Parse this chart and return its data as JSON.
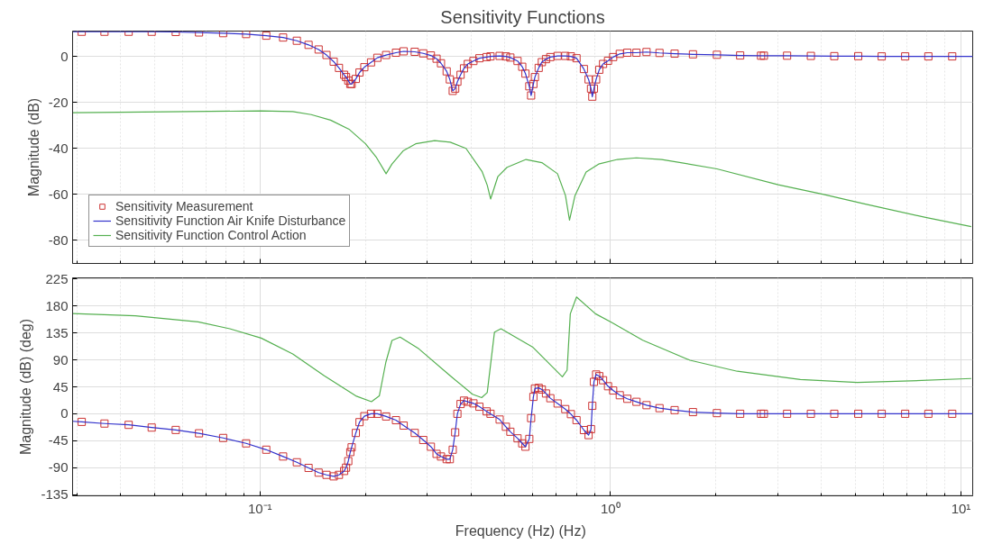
{
  "chart_data": [
    {
      "type": "line",
      "title": "Sensitivity Functions",
      "ylabel": "Magnitude (dB)",
      "log": "x",
      "grid": true,
      "legend": "bottom left",
      "tick_labels": "y",
      "xlim": [
        0.0292,
        10.8
      ],
      "xticks": [
        0.1,
        1,
        10
      ],
      "ylim": [
        -90,
        11
      ],
      "yticks": [
        -80,
        -60,
        -40,
        -20,
        0
      ],
      "series": [
        {
          "name": "Sensitivity Measurement",
          "type": "scatter",
          "marker": "square",
          "color": "#cc3333",
          "x": [
            0.031,
            0.036,
            0.0422,
            0.0491,
            0.0575,
            0.067,
            0.0785,
            0.0913,
            0.1042,
            0.1164,
            0.1274,
            0.1376,
            0.147,
            0.1548,
            0.1623,
            0.168,
            0.1738,
            0.176,
            0.1786,
            0.181,
            0.1826,
            0.1877,
            0.1923,
            0.1985,
            0.2074,
            0.2162,
            0.229,
            0.2443,
            0.257,
            0.2764,
            0.2923,
            0.3073,
            0.319,
            0.3284,
            0.3409,
            0.348,
            0.3547,
            0.3605,
            0.3658,
            0.3735,
            0.382,
            0.3917,
            0.4064,
            0.4227,
            0.4432,
            0.4547,
            0.4828,
            0.503,
            0.518,
            0.543,
            0.56,
            0.572,
            0.5866,
            0.5937,
            0.6026,
            0.6087,
            0.624,
            0.637,
            0.6546,
            0.6736,
            0.7066,
            0.743,
            0.771,
            0.8,
            0.8397,
            0.866,
            0.88,
            0.8874,
            0.897,
            0.91,
            0.929,
            0.9524,
            0.984,
            1.0177,
            1.063,
            1.117,
            1.186,
            1.267,
            1.38,
            1.524,
            1.719,
            2.012,
            2.344,
            2.689,
            2.739,
            3.19,
            3.73,
            4.35,
            5.09,
            5.94,
            6.93,
            8.07,
            9.44
          ],
          "values": [
            10.7,
            10.7,
            10.7,
            10.7,
            10.6,
            10.4,
            10.1,
            9.7,
            9.0,
            8.2,
            6.8,
            5.0,
            3.0,
            0.6,
            -2.3,
            -5,
            -8,
            -9,
            -10.5,
            -12,
            -12,
            -9.8,
            -7,
            -4.7,
            -2.6,
            -0.6,
            0.6,
            1.6,
            2.2,
            2.0,
            1.3,
            0.4,
            -1.0,
            -3.0,
            -6.5,
            -10,
            -15,
            -14,
            -11,
            -8,
            -5.2,
            -3.3,
            -2,
            -0.8,
            -0.3,
            0,
            0.2,
            0,
            -0.5,
            -2,
            -4.5,
            -7.5,
            -13,
            -17,
            -12,
            -9,
            -5,
            -2.5,
            -1.2,
            -0.3,
            0.2,
            0.2,
            0,
            -0.8,
            -5.5,
            -10,
            -14,
            -17.5,
            -14,
            -10,
            -5.8,
            -3.3,
            -1.9,
            -0.3,
            1.1,
            1.6,
            1.6,
            1.9,
            1.5,
            1.2,
            0.9,
            0.7,
            0.4,
            0.3,
            0.3,
            0.3,
            0.2,
            0.1,
            0.1,
            0,
            0,
            0,
            0
          ]
        },
        {
          "name": "Sensitivity Function Air Knife Disturbance",
          "color": "#3333cc",
          "x": [
            0.0292,
            0.031,
            0.036,
            0.0422,
            0.0491,
            0.0575,
            0.067,
            0.0785,
            0.0913,
            0.1042,
            0.1164,
            0.1274,
            0.1376,
            0.147,
            0.1548,
            0.1623,
            0.168,
            0.1738,
            0.176,
            0.1786,
            0.181,
            0.1826,
            0.1877,
            0.1923,
            0.1985,
            0.2074,
            0.2162,
            0.229,
            0.2443,
            0.257,
            0.2764,
            0.2923,
            0.3073,
            0.319,
            0.3284,
            0.3409,
            0.348,
            0.3547,
            0.3605,
            0.3658,
            0.3735,
            0.382,
            0.3917,
            0.4064,
            0.4227,
            0.4432,
            0.4547,
            0.4828,
            0.503,
            0.518,
            0.543,
            0.56,
            0.572,
            0.5866,
            0.5937,
            0.6026,
            0.6087,
            0.624,
            0.637,
            0.6546,
            0.6736,
            0.7066,
            0.743,
            0.771,
            0.8,
            0.8397,
            0.866,
            0.88,
            0.8874,
            0.897,
            0.91,
            0.929,
            0.9524,
            0.984,
            1.0177,
            1.063,
            1.117,
            1.186,
            1.267,
            1.38,
            1.524,
            1.719,
            2.012,
            2.344,
            2.689,
            3.19,
            3.73,
            4.35,
            5.09,
            5.94,
            6.93,
            8.07,
            9.44,
            10.8
          ],
          "values": [
            10.7,
            10.7,
            10.7,
            10.7,
            10.7,
            10.6,
            10.4,
            10.1,
            9.7,
            9.0,
            8.2,
            6.8,
            5.0,
            3.0,
            0.6,
            -2.3,
            -5,
            -8,
            -9,
            -10.5,
            -12,
            -12,
            -9.8,
            -7,
            -4.7,
            -2.6,
            -0.6,
            0.6,
            1.6,
            2.2,
            2.0,
            1.3,
            0.4,
            -1.0,
            -3.0,
            -6.5,
            -10,
            -15,
            -14,
            -11,
            -8,
            -5.2,
            -3.3,
            -2,
            -0.8,
            -0.3,
            0,
            0.2,
            0,
            -0.5,
            -2,
            -4.5,
            -7.5,
            -13,
            -17,
            -12,
            -9,
            -5,
            -2.5,
            -1.2,
            -0.3,
            0.2,
            0.2,
            0,
            -0.8,
            -5.5,
            -10,
            -14,
            -17.5,
            -14,
            -10,
            -5.8,
            -3.3,
            -1.9,
            -0.3,
            1.1,
            1.6,
            1.6,
            1.9,
            1.5,
            1.2,
            0.9,
            0.7,
            0.4,
            0.3,
            0.3,
            0.2,
            0.1,
            0.1,
            0,
            0,
            0,
            0,
            0
          ]
        },
        {
          "name": "Sensitivity Function Control Action",
          "color": "#55b050",
          "x": [
            0.0292,
            0.0541,
            0.1008,
            0.124,
            0.14,
            0.159,
            0.18,
            0.2,
            0.215,
            0.229,
            0.238,
            0.256,
            0.278,
            0.315,
            0.349,
            0.387,
            0.43,
            0.445,
            0.455,
            0.477,
            0.507,
            0.574,
            0.637,
            0.706,
            0.744,
            0.764,
            0.792,
            0.852,
            0.925,
            1.047,
            1.186,
            1.4,
            2.012,
            3.01,
            4.03,
            5.27,
            7.98,
            10.7
          ],
          "values": [
            -24.5,
            -24.1,
            -23.7,
            -24,
            -25.3,
            -27.7,
            -31.8,
            -38,
            -44,
            -51,
            -46.8,
            -41.1,
            -38,
            -36.6,
            -37.3,
            -40,
            -50,
            -56,
            -62,
            -52.3,
            -48.2,
            -44.8,
            -46.2,
            -51,
            -60.5,
            -71.2,
            -60.5,
            -50.3,
            -46.8,
            -44.8,
            -44.1,
            -44.8,
            -48.9,
            -55.8,
            -59.9,
            -64,
            -70.1,
            -74
          ]
        }
      ]
    },
    {
      "type": "line",
      "xlabel": "Frequency (Hz)  (Hz)",
      "ylabel": "Magnitude (dB) (deg)",
      "log": "x",
      "grid": true,
      "xlim": [
        0.0292,
        10.8
      ],
      "xticks": [
        {
          "value": 0.1,
          "label": "10⁻¹"
        },
        {
          "value": 1,
          "label": "10⁰"
        },
        {
          "value": 10,
          "label": "10¹"
        }
      ],
      "ylim": [
        -137,
        227
      ],
      "yticks": [
        -135,
        -90,
        -45,
        0,
        45,
        90,
        135,
        180,
        225
      ],
      "series": [
        {
          "type": "scatter",
          "marker": "square",
          "color": "#cc3333",
          "x": [
            0.031,
            0.036,
            0.0422,
            0.0491,
            0.0575,
            0.067,
            0.0785,
            0.0913,
            0.1042,
            0.1164,
            0.1274,
            0.1376,
            0.147,
            0.1548,
            0.1623,
            0.168,
            0.1738,
            0.176,
            0.1786,
            0.181,
            0.1826,
            0.1877,
            0.1923,
            0.1985,
            0.2074,
            0.2162,
            0.229,
            0.2443,
            0.257,
            0.2764,
            0.2923,
            0.3073,
            0.319,
            0.3284,
            0.3409,
            0.348,
            0.3547,
            0.3605,
            0.3658,
            0.3735,
            0.382,
            0.3917,
            0.4064,
            0.4227,
            0.4432,
            0.4547,
            0.4828,
            0.503,
            0.518,
            0.543,
            0.56,
            0.572,
            0.5866,
            0.5937,
            0.6026,
            0.6087,
            0.624,
            0.637,
            0.6546,
            0.6736,
            0.7066,
            0.743,
            0.771,
            0.8,
            0.8397,
            0.866,
            0.88,
            0.8874,
            0.897,
            0.91,
            0.929,
            0.9524,
            0.984,
            1.0177,
            1.063,
            1.117,
            1.186,
            1.267,
            1.38,
            1.524,
            1.719,
            2.012,
            2.344,
            2.689,
            2.739,
            3.19,
            3.73,
            4.35,
            5.09,
            5.94,
            6.93,
            8.07,
            9.44
          ],
          "values": [
            -13.5,
            -16.3,
            -18.5,
            -23,
            -27,
            -32.6,
            -40.4,
            -49.4,
            -60,
            -71.3,
            -81,
            -90.4,
            -98.3,
            -102,
            -104.5,
            -102,
            -95.5,
            -90,
            -79,
            -64,
            -56,
            -32,
            -14,
            -4,
            0,
            0,
            -4.5,
            -10.7,
            -19.7,
            -32,
            -43.8,
            -55,
            -67,
            -71.3,
            -75.8,
            -75.8,
            -60,
            -31,
            0,
            16.3,
            22,
            20,
            17.4,
            11.8,
            4,
            0,
            -9.6,
            -21.7,
            -30,
            -41,
            -49.4,
            -55,
            -42,
            -7.2,
            28.3,
            42.2,
            43.3,
            40.6,
            33.9,
            26,
            17.2,
            7.8,
            -0.6,
            -10.6,
            -27.2,
            -35.6,
            -25.6,
            13.3,
            53.3,
            65.6,
            62.8,
            56,
            46,
            38.9,
            31,
            25,
            20,
            14.4,
            9.4,
            6.1,
            2.8,
            1.1,
            0,
            0,
            0,
            0,
            0,
            0,
            0,
            0,
            0,
            0,
            0
          ]
        },
        {
          "color": "#3333cc",
          "x": [
            0.0292,
            0.031,
            0.036,
            0.0422,
            0.0491,
            0.0575,
            0.067,
            0.0785,
            0.0913,
            0.1042,
            0.1164,
            0.1274,
            0.1376,
            0.147,
            0.1548,
            0.1623,
            0.168,
            0.1738,
            0.176,
            0.1786,
            0.181,
            0.1826,
            0.1877,
            0.1923,
            0.1985,
            0.2074,
            0.2162,
            0.229,
            0.2443,
            0.257,
            0.2764,
            0.2923,
            0.3073,
            0.319,
            0.3284,
            0.3409,
            0.348,
            0.3547,
            0.3605,
            0.3658,
            0.3735,
            0.382,
            0.3917,
            0.4064,
            0.4227,
            0.4432,
            0.4547,
            0.4828,
            0.503,
            0.518,
            0.543,
            0.56,
            0.572,
            0.5866,
            0.5937,
            0.6026,
            0.6087,
            0.624,
            0.637,
            0.6546,
            0.6736,
            0.7066,
            0.743,
            0.771,
            0.8,
            0.8397,
            0.866,
            0.88,
            0.8874,
            0.897,
            0.91,
            0.929,
            0.9524,
            0.984,
            1.0177,
            1.063,
            1.117,
            1.186,
            1.267,
            1.38,
            1.524,
            1.719,
            2.012,
            2.344,
            2.689,
            3.19,
            3.73,
            4.35,
            5.09,
            5.94,
            6.93,
            8.07,
            9.44,
            10.8
          ],
          "values": [
            -12.5,
            -13.5,
            -16.3,
            -18.5,
            -23,
            -27,
            -32.6,
            -40.4,
            -49.4,
            -60,
            -71.3,
            -81,
            -90.4,
            -98.3,
            -102,
            -104.5,
            -102,
            -95.5,
            -90,
            -79,
            -64,
            -56,
            -32,
            -14,
            -4,
            0,
            0,
            -4.5,
            -10.7,
            -19.7,
            -32,
            -43.8,
            -55,
            -67,
            -71.3,
            -75.8,
            -75.8,
            -60,
            -31,
            0,
            16.3,
            22,
            20,
            17.4,
            11.8,
            4,
            0,
            -9.6,
            -21.7,
            -30,
            -41,
            -49.4,
            -55,
            -42,
            -7.2,
            28.3,
            42.2,
            43.3,
            40.6,
            33.9,
            26,
            17.2,
            7.8,
            -0.6,
            -10.6,
            -27.2,
            -35.6,
            -25.6,
            13.3,
            53.3,
            65.6,
            62.8,
            56,
            46,
            38.9,
            31,
            25,
            20,
            14.4,
            9.4,
            6.1,
            2.8,
            1.1,
            0,
            0,
            0,
            0,
            0,
            0,
            0,
            0,
            0,
            0,
            0
          ]
        },
        {
          "color": "#55b050",
          "x": [
            0.0292,
            0.0441,
            0.0666,
            0.082,
            0.1008,
            0.124,
            0.1526,
            0.1877,
            0.208,
            0.219,
            0.2286,
            0.238,
            0.251,
            0.284,
            0.349,
            0.404,
            0.429,
            0.445,
            0.4667,
            0.487,
            0.599,
            0.729,
            0.752,
            0.768,
            0.8,
            0.906,
            1.005,
            1.236,
            1.686,
            2.3,
            3.48,
            5.06,
            7.19,
            10.7
          ],
          "values": [
            167.4,
            163.5,
            153.4,
            142,
            126.4,
            100,
            63.5,
            29.8,
            20.2,
            29.8,
            86,
            122.5,
            128,
            108.4,
            63.5,
            32.6,
            27,
            35.4,
            136.5,
            142,
            111.7,
            61.7,
            72.8,
            167,
            195,
            167,
            153,
            122.8,
            89.4,
            71,
            57.2,
            52.2,
            55,
            58.9
          ]
        }
      ]
    }
  ]
}
